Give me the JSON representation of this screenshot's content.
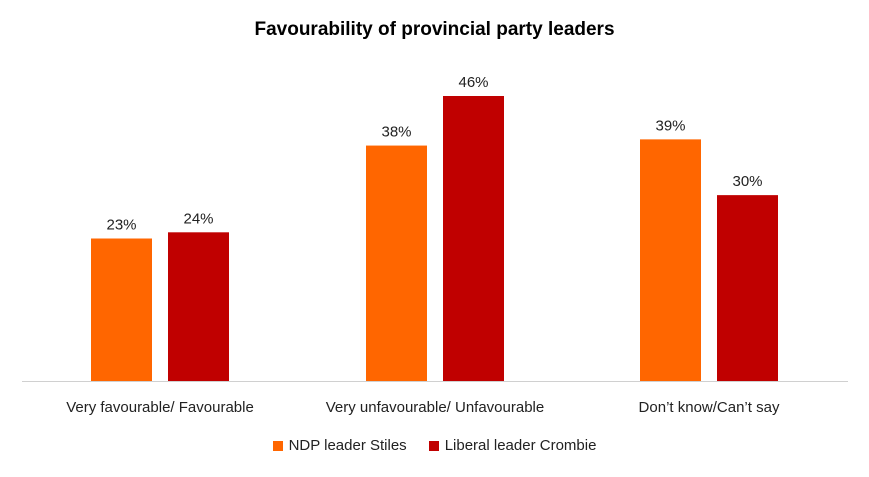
{
  "chart_data": {
    "type": "bar",
    "title": "Favourability of provincial party leaders",
    "categories": [
      "Very favourable/ Favourable",
      "Very unfavourable/ Unfavourable",
      "Don’t know/Can’t say"
    ],
    "series": [
      {
        "name": "NDP leader Stiles",
        "values": [
          23,
          38,
          39
        ],
        "labels": [
          "23%",
          "38%",
          "39%"
        ],
        "color": "#FF6600"
      },
      {
        "name": "Liberal leader Crombie",
        "values": [
          24,
          46,
          30
        ],
        "labels": [
          "24%",
          "46%",
          "30%"
        ],
        "color": "#C00000"
      }
    ],
    "xlabel": "",
    "ylabel": "",
    "ylim": [
      0,
      46
    ],
    "grid": false,
    "legend_position": "bottom"
  }
}
